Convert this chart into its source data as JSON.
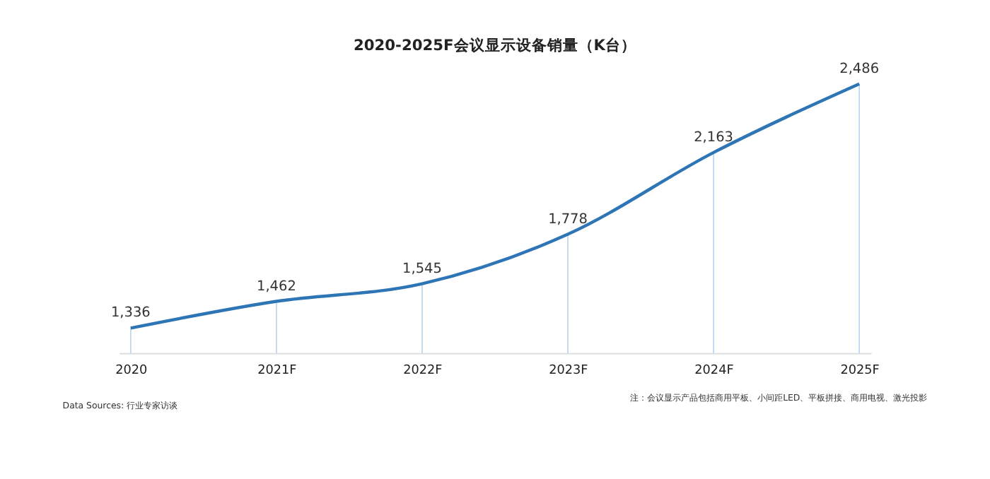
{
  "chart_data": {
    "type": "line",
    "title": "2020-2025F会议显示设备销量（K台）",
    "categories": [
      "2020",
      "2021F",
      "2022F",
      "2023F",
      "2024F",
      "2025F"
    ],
    "series": [
      {
        "color": "#2e75b6",
        "values": [
          1336,
          1462,
          1545,
          1778,
          2163,
          2486
        ],
        "value_labels": [
          "1,336",
          "1,462",
          "1,545",
          "1,778",
          "2,163",
          "2,486"
        ]
      }
    ],
    "grid": "x",
    "tick_labels": "x",
    "marker": "none",
    "line_style": "solid",
    "annotations": [
      "Data Sources: 行业专家访谈",
      "注：会议显示产品包括商用平板、小间距LED、平板拼接、商用电视、激光投影"
    ]
  }
}
